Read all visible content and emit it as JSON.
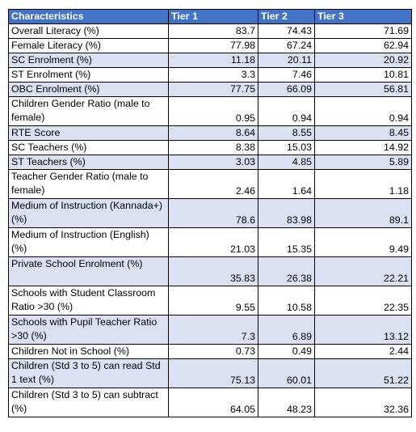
{
  "table": {
    "headers": [
      "Characteristics",
      "Tier 1",
      "Tier 2",
      "Tier 3"
    ],
    "rows": [
      {
        "label": "Overall Literacy (%)",
        "values": [
          "83.7",
          "74.43",
          "71.69"
        ],
        "shaded": false,
        "lines": 1
      },
      {
        "label": "Female Literacy (%)",
        "values": [
          "77.98",
          "67.24",
          "62.94"
        ],
        "shaded": false,
        "lines": 1
      },
      {
        "label": "SC Enrolment (%)",
        "values": [
          "11.18",
          "20.11",
          "20.92"
        ],
        "shaded": true,
        "lines": 1
      },
      {
        "label": "ST Enrolment (%)",
        "values": [
          "3.3",
          "7.46",
          "10.81"
        ],
        "shaded": false,
        "lines": 1
      },
      {
        "label": "OBC Enrolment (%)",
        "values": [
          "77.75",
          "66.09",
          "56.81"
        ],
        "shaded": true,
        "lines": 1
      },
      {
        "label": "Children Gender Ratio (male to female)",
        "values": [
          "0.95",
          "0.94",
          "0.94"
        ],
        "shaded": false,
        "lines": 2
      },
      {
        "label": "RTE Score",
        "values": [
          "8.64",
          "8.55",
          "8.45"
        ],
        "shaded": true,
        "lines": 1
      },
      {
        "label": "SC Teachers (%)",
        "values": [
          "8.38",
          "15.03",
          "14.92"
        ],
        "shaded": false,
        "lines": 1
      },
      {
        "label": "ST Teachers (%)",
        "values": [
          "3.03",
          "4.85",
          "5.89"
        ],
        "shaded": true,
        "lines": 1
      },
      {
        "label": "Teacher Gender Ratio (male to female)",
        "values": [
          "2.46",
          "1.64",
          "1.18"
        ],
        "shaded": false,
        "lines": 2
      },
      {
        "label": "Medium of Instruction (Kannada+) (%)",
        "values": [
          "78.6",
          "83.98",
          "89.1"
        ],
        "shaded": true,
        "lines": 2
      },
      {
        "label": "Medium of Instruction (English) (%)",
        "values": [
          "21.03",
          "15.35",
          "9.49"
        ],
        "shaded": false,
        "lines": 2
      },
      {
        "label": "Private School Enrolment (%)",
        "values": [
          "35.83",
          "26.38",
          "22.21"
        ],
        "shaded": true,
        "lines": 2
      },
      {
        "label": "Schools with Student Classroom Ratio >30 (%)",
        "values": [
          "9.55",
          "10.58",
          "22.35"
        ],
        "shaded": false,
        "lines": 2
      },
      {
        "label": "Schools with Pupil Teacher Ratio >30 (%)",
        "values": [
          "7.3",
          "6.89",
          "13.12"
        ],
        "shaded": true,
        "lines": 2
      },
      {
        "label": "Children Not in School (%)",
        "values": [
          "0.73",
          "0.49",
          "2.44"
        ],
        "shaded": false,
        "lines": 1
      },
      {
        "label": "Children (Std 3 to 5) can read Std 1 text (%)",
        "values": [
          "75.13",
          "60.01",
          "51.22"
        ],
        "shaded": true,
        "lines": 2
      },
      {
        "label": "Children (Std 3 to 5) can subtract (%)",
        "values": [
          "64.05",
          "48.23",
          "32.36"
        ],
        "shaded": false,
        "lines": 2
      }
    ]
  }
}
